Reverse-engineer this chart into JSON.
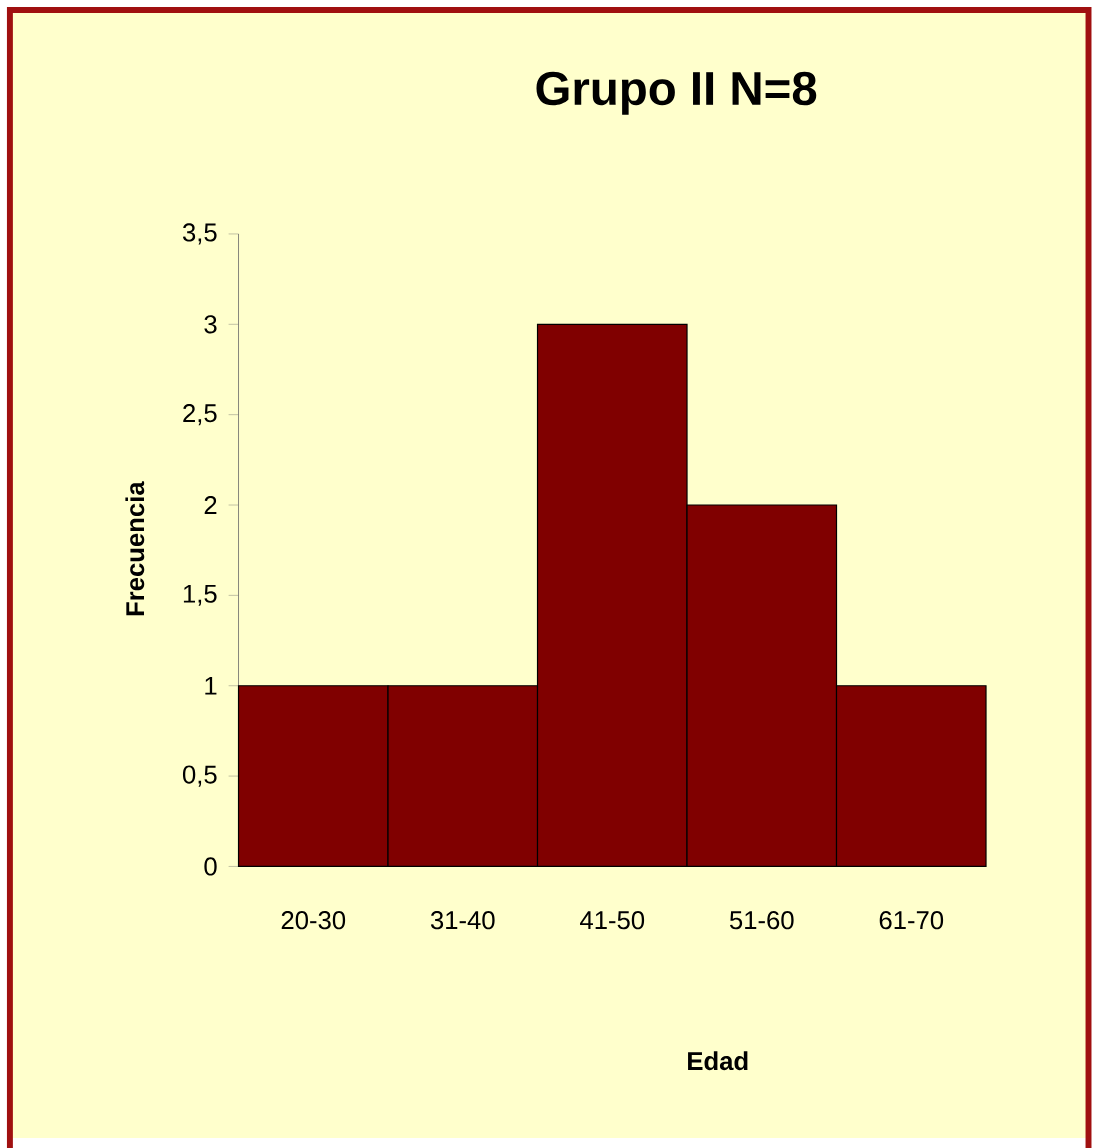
{
  "chart_data": {
    "type": "bar",
    "title": "Grupo II N=8",
    "xlabel": "Edad",
    "ylabel": "Frecuencia",
    "categories": [
      "20-30",
      "31-40",
      "41-50",
      "51-60",
      "61-70"
    ],
    "values": [
      1,
      1,
      3,
      2,
      1
    ],
    "color": "#800000",
    "ylim": [
      0,
      3.5
    ],
    "yticks": [
      0,
      {
        "value": 0.5,
        "label": "0,5"
      },
      1,
      {
        "value": 1.5,
        "label": "1,5"
      },
      2,
      {
        "value": 2.5,
        "label": "2,5"
      },
      3,
      {
        "value": 3.5,
        "label": "3,5"
      }
    ]
  }
}
